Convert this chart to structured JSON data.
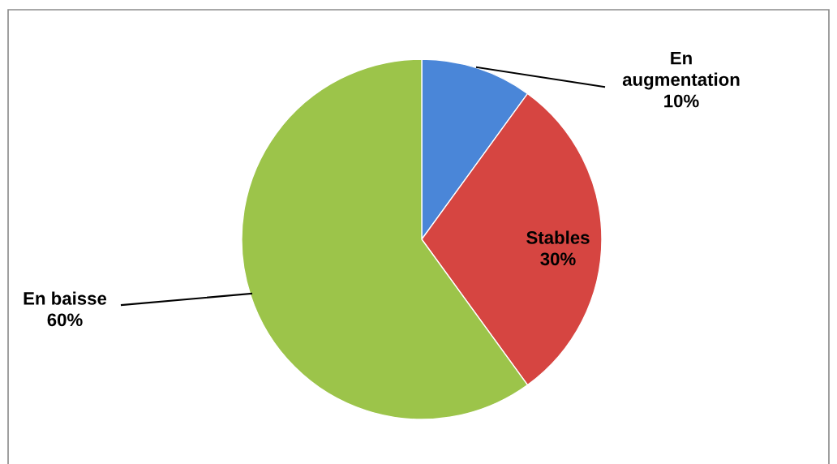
{
  "chart_data": {
    "type": "pie",
    "categories": [
      "En augmentation",
      "Stables",
      "En baisse"
    ],
    "values": [
      10,
      30,
      60
    ],
    "value_labels": [
      "10%",
      "30%",
      "60%"
    ],
    "colors": [
      "#4a86d8",
      "#d64541",
      "#9cc44a"
    ],
    "legend": false
  }
}
